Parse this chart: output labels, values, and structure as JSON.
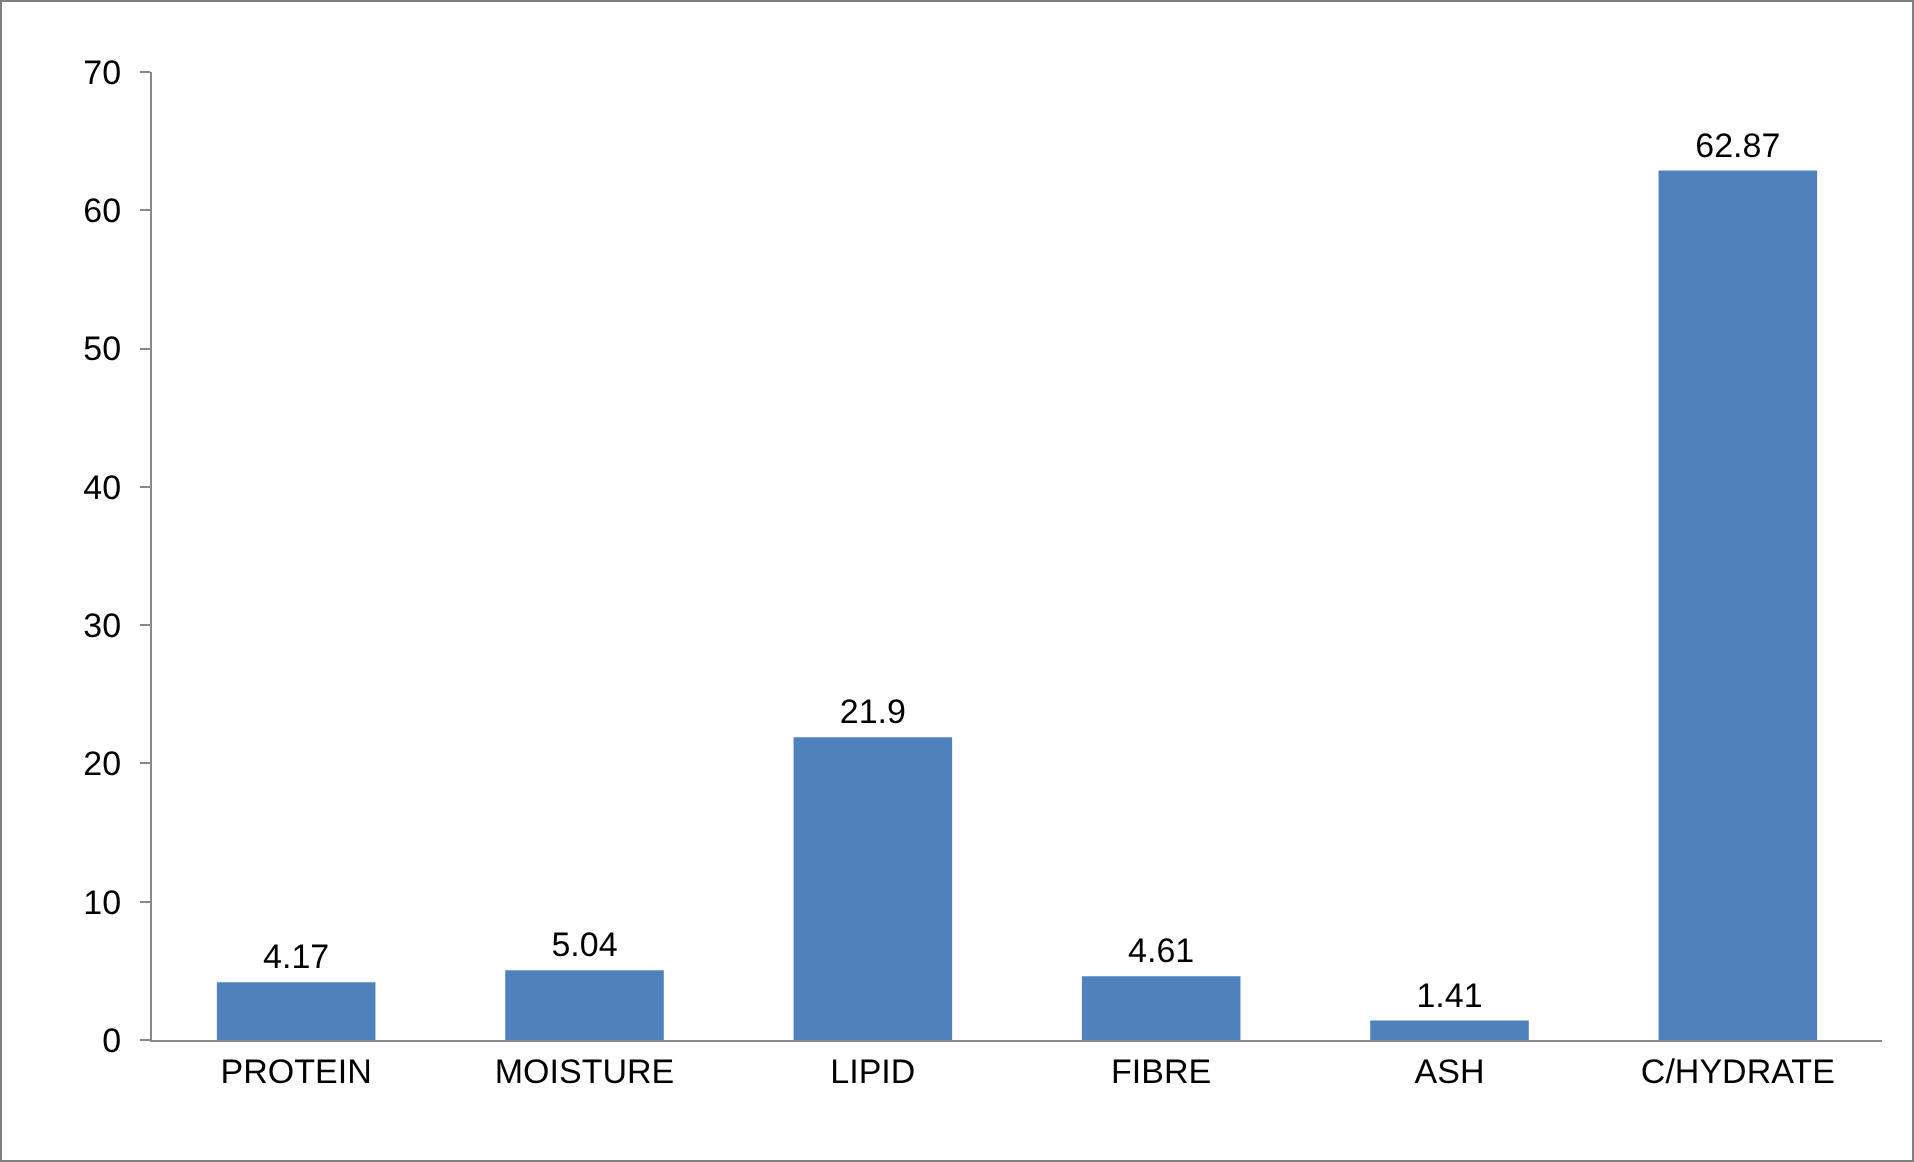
{
  "chart_data": {
    "type": "bar",
    "categories": [
      "PROTEIN",
      "MOISTURE",
      "LIPID",
      "FIBRE",
      "ASH",
      "C/HYDRATE"
    ],
    "values": [
      4.17,
      5.04,
      21.9,
      4.61,
      1.41,
      62.87
    ],
    "color": "#4f81bd",
    "ylim": [
      0,
      70
    ],
    "yticks": [
      0,
      10,
      20,
      30,
      40,
      50,
      60,
      70
    ],
    "grid": false,
    "data_labels": true
  }
}
